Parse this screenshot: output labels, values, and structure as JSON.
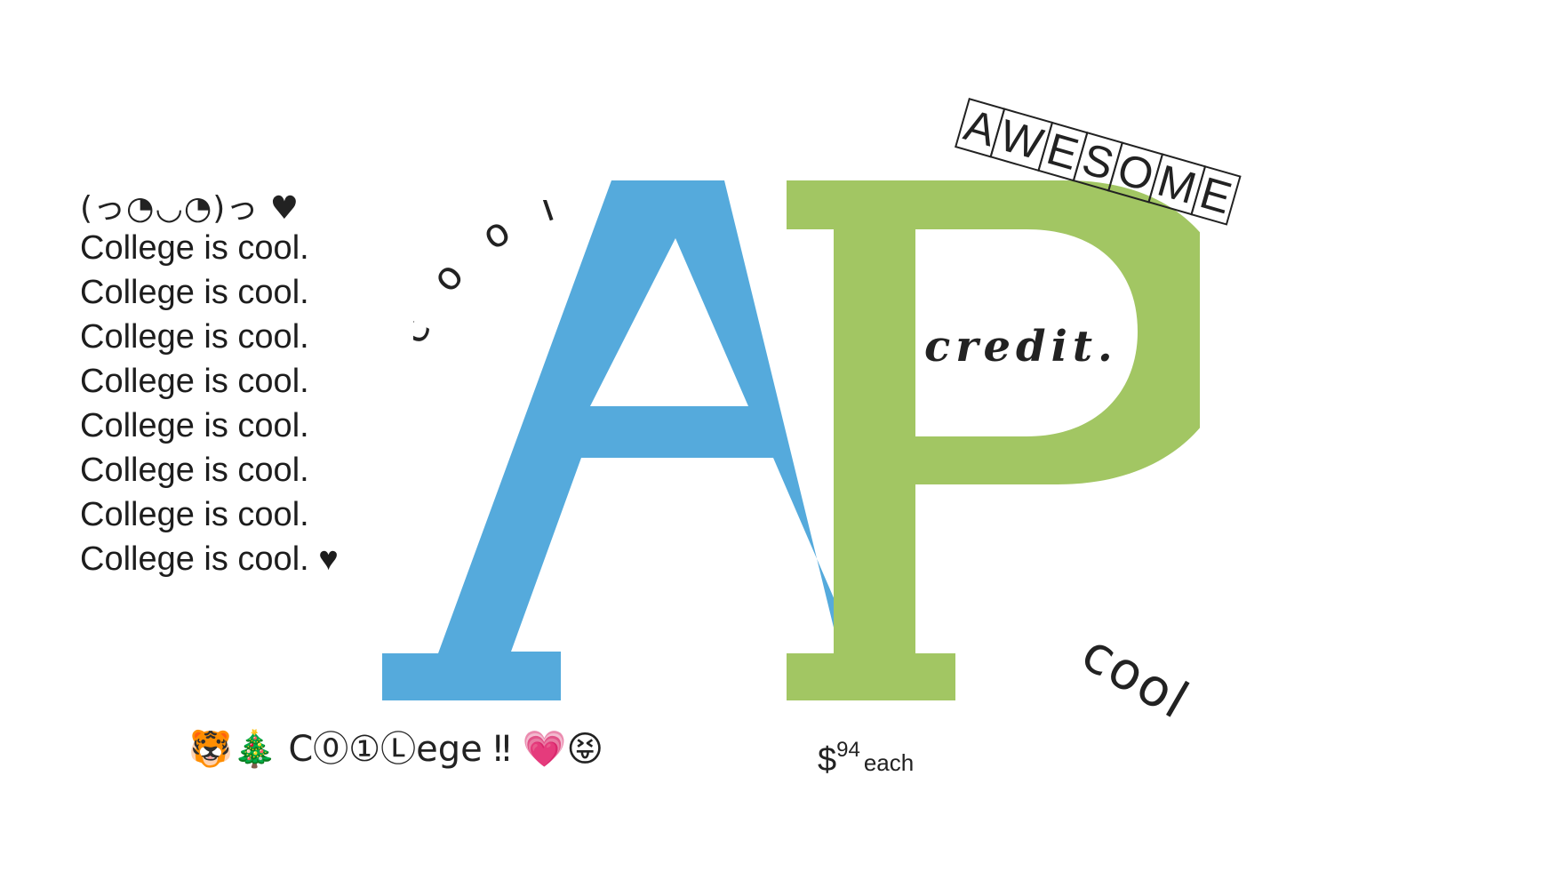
{
  "logo": {
    "letter_a": "A",
    "letter_p": "P",
    "color_a": "#55aadc",
    "color_p": "#a2c663"
  },
  "kaomoji": "(っ◔◡◔)っ ♥",
  "lines": [
    "College is cool.",
    "College is cool.",
    "College is cool.",
    "College is cool.",
    "College is cool.",
    "College is cool.",
    "College is cool.",
    "College is cool. ♥"
  ],
  "cool_arc": "c o o l",
  "awesome_letters": [
    "A",
    "W",
    "E",
    "S",
    "O",
    "M",
    "E"
  ],
  "credit": "credit.",
  "cool_outline": "cool",
  "bottom_line": "🐯🎄  C⓪①Ⓛege ‼  💗😝",
  "price": {
    "symbol": "$",
    "amount": "94",
    "unit": "each"
  }
}
